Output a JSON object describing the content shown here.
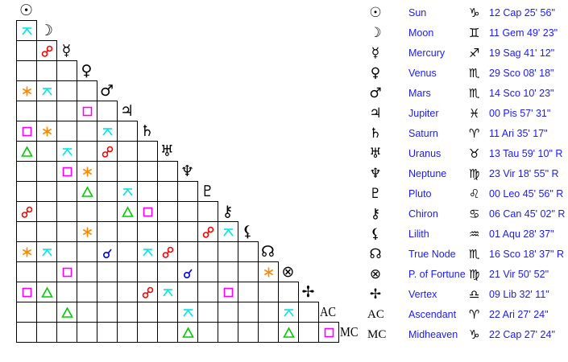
{
  "planets": [
    {
      "glyph": "☉",
      "name": "Sun",
      "sign_glyph": "♑",
      "position": "12 Cap 25' 56\""
    },
    {
      "glyph": "☽",
      "name": "Moon",
      "sign_glyph": "♊",
      "position": "11 Gem 49' 23\""
    },
    {
      "glyph": "☿",
      "name": "Mercury",
      "sign_glyph": "♐",
      "position": "19 Sag 41' 12\""
    },
    {
      "glyph": "♀",
      "name": "Venus",
      "sign_glyph": "♏",
      "position": "29 Sco 08' 18\""
    },
    {
      "glyph": "♂",
      "name": "Mars",
      "sign_glyph": "♏",
      "position": "14 Sco 10' 23\""
    },
    {
      "glyph": "♃",
      "name": "Jupiter",
      "sign_glyph": "♓",
      "position": "00 Pis 57' 31\""
    },
    {
      "glyph": "♄",
      "name": "Saturn",
      "sign_glyph": "♈",
      "position": "11 Ari 35' 17\""
    },
    {
      "glyph": "♅",
      "name": "Uranus",
      "sign_glyph": "♉",
      "position": "13 Tau 59' 10\" R"
    },
    {
      "glyph": "♆",
      "name": "Neptune",
      "sign_glyph": "♍",
      "position": "23 Vir 18' 55\" R"
    },
    {
      "glyph": "♇",
      "name": "Pluto",
      "sign_glyph": "♌",
      "position": "00 Leo 45' 56\" R"
    },
    {
      "glyph": "⚷",
      "name": "Chiron",
      "sign_glyph": "♋",
      "position": "06 Can 45' 02\" R"
    },
    {
      "glyph": "⚸",
      "name": "Lilith",
      "sign_glyph": "♒",
      "position": "01 Aqu 28' 37\""
    },
    {
      "glyph": "☊",
      "name": "True Node",
      "sign_glyph": "♏",
      "position": "16 Sco 18' 37\" R"
    },
    {
      "glyph": "⊗",
      "name": "P. of Fortune",
      "sign_glyph": "♍",
      "position": "21 Vir 50' 52\""
    },
    {
      "glyph": "✢",
      "name": "Vertex",
      "sign_glyph": "♎",
      "position": "09 Lib 32' 11\""
    },
    {
      "glyph": "AC",
      "name": "Ascendant",
      "sign_glyph": "♈",
      "position": "22 Ari 27' 24\""
    },
    {
      "glyph": "MC",
      "name": "Midheaven",
      "sign_glyph": "♑",
      "position": "22 Cap 27' 24\""
    }
  ],
  "aspect_colors": {
    "conjunction": "#0000dd",
    "opposition": "#ff0000",
    "trine": "#00cc00",
    "square": "#ff00ff",
    "sextile": "#ff8800",
    "quincunx": "#00e5e5"
  },
  "aspects": [
    {
      "a": "Moon",
      "b": "Sun",
      "type": "quincunx"
    },
    {
      "a": "Mercury",
      "b": "Moon",
      "type": "opposition"
    },
    {
      "a": "Mars",
      "b": "Sun",
      "type": "sextile"
    },
    {
      "a": "Mars",
      "b": "Moon",
      "type": "quincunx"
    },
    {
      "a": "Jupiter",
      "b": "Venus",
      "type": "square"
    },
    {
      "a": "Saturn",
      "b": "Sun",
      "type": "square"
    },
    {
      "a": "Saturn",
      "b": "Moon",
      "type": "sextile"
    },
    {
      "a": "Saturn",
      "b": "Mars",
      "type": "quincunx"
    },
    {
      "a": "Uranus",
      "b": "Sun",
      "type": "trine"
    },
    {
      "a": "Uranus",
      "b": "Mercury",
      "type": "quincunx"
    },
    {
      "a": "Uranus",
      "b": "Mars",
      "type": "opposition"
    },
    {
      "a": "Neptune",
      "b": "Mercury",
      "type": "square"
    },
    {
      "a": "Neptune",
      "b": "Venus",
      "type": "sextile"
    },
    {
      "a": "Pluto",
      "b": "Venus",
      "type": "trine"
    },
    {
      "a": "Pluto",
      "b": "Jupiter",
      "type": "quincunx"
    },
    {
      "a": "Chiron",
      "b": "Sun",
      "type": "opposition"
    },
    {
      "a": "Chiron",
      "b": "Jupiter",
      "type": "trine"
    },
    {
      "a": "Chiron",
      "b": "Saturn",
      "type": "square"
    },
    {
      "a": "Lilith",
      "b": "Venus",
      "type": "sextile"
    },
    {
      "a": "Lilith",
      "b": "Pluto",
      "type": "opposition"
    },
    {
      "a": "Lilith",
      "b": "Chiron",
      "type": "quincunx"
    },
    {
      "a": "True Node",
      "b": "Sun",
      "type": "sextile"
    },
    {
      "a": "True Node",
      "b": "Moon",
      "type": "quincunx"
    },
    {
      "a": "True Node",
      "b": "Mars",
      "type": "conjunction"
    },
    {
      "a": "True Node",
      "b": "Saturn",
      "type": "quincunx"
    },
    {
      "a": "True Node",
      "b": "Uranus",
      "type": "opposition"
    },
    {
      "a": "P. of Fortune",
      "b": "Mercury",
      "type": "square"
    },
    {
      "a": "P. of Fortune",
      "b": "Neptune",
      "type": "conjunction"
    },
    {
      "a": "P. of Fortune",
      "b": "True Node",
      "type": "sextile"
    },
    {
      "a": "Vertex",
      "b": "Sun",
      "type": "square"
    },
    {
      "a": "Vertex",
      "b": "Moon",
      "type": "trine"
    },
    {
      "a": "Vertex",
      "b": "Saturn",
      "type": "opposition"
    },
    {
      "a": "Vertex",
      "b": "Uranus",
      "type": "quincunx"
    },
    {
      "a": "Vertex",
      "b": "Chiron",
      "type": "square"
    },
    {
      "a": "Ascendant",
      "b": "Mercury",
      "type": "trine"
    },
    {
      "a": "Ascendant",
      "b": "Neptune",
      "type": "quincunx"
    },
    {
      "a": "Ascendant",
      "b": "P. of Fortune",
      "type": "quincunx"
    },
    {
      "a": "Midheaven",
      "b": "Neptune",
      "type": "trine"
    },
    {
      "a": "Midheaven",
      "b": "P. of Fortune",
      "type": "trine"
    },
    {
      "a": "Midheaven",
      "b": "Ascendant",
      "type": "square"
    }
  ]
}
